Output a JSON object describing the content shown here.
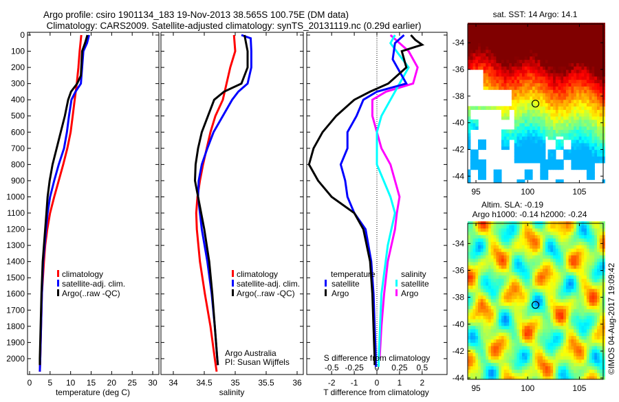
{
  "title": {
    "line1": "Argo profile: csiro 1901134_183 19-Nov-2013 38.565S 100.75E (DM data)",
    "line2": "Climatology: CARS2009. Satellite-adjusted climatology: synTS_20131119.nc (0.29d earlier)"
  },
  "colors": {
    "climatology": "#ff0000",
    "satellite": "#0000ff",
    "argo": "#000000",
    "sal_satellite": "#00ffff",
    "sal_argo": "#ff00ff"
  },
  "chart_data": [
    {
      "type": "line",
      "name": "temperature",
      "xlabel": "temperature (deg C)",
      "ylabel": "depth",
      "xlim": [
        -0.5,
        31.5
      ],
      "ylim": [
        2098,
        -17
      ],
      "xticks": [
        "0",
        "5",
        "10",
        "15",
        "20",
        "25",
        "30"
      ],
      "yticks": [
        "0",
        "100",
        "200",
        "300",
        "400",
        "500",
        "600",
        "700",
        "800",
        "900",
        "1000",
        "1100",
        "1200",
        "1300",
        "1400",
        "1500",
        "1600",
        "1700",
        "1800",
        "1900",
        "2000"
      ],
      "legend": [
        "climatology",
        "satellite-adj. clim.",
        "Argo(..raw -QC)"
      ],
      "series": [
        {
          "name": "climatology",
          "color": "#ff0000",
          "depth": [
            0,
            100,
            200,
            300,
            400,
            500,
            600,
            700,
            800,
            900,
            1000,
            1100,
            1200,
            1300,
            1400,
            1600,
            1800,
            2000,
            2080
          ],
          "values": [
            12.6,
            12.2,
            11.9,
            11.5,
            11.0,
            10.5,
            10.0,
            9.2,
            8.2,
            7.1,
            6.0,
            5.0,
            4.3,
            3.8,
            3.5,
            3.0,
            2.8,
            2.6,
            2.5
          ]
        },
        {
          "name": "satellite-adj. clim.",
          "color": "#0000ff",
          "depth": [
            0,
            50,
            100,
            200,
            300,
            350,
            400,
            500,
            600,
            700,
            800,
            900,
            1000,
            1100,
            1200,
            1400,
            1600,
            1800,
            2000,
            2080
          ],
          "values": [
            14.5,
            14.0,
            13.1,
            12.8,
            12.5,
            11.2,
            10.2,
            9.6,
            9.1,
            8.4,
            7.1,
            6.0,
            5.0,
            4.4,
            4.0,
            3.3,
            3.0,
            2.8,
            2.6,
            2.5
          ]
        },
        {
          "name": "Argo(..raw -QC)",
          "color": "#000000",
          "depth": [
            0,
            50,
            100,
            250,
            300,
            350,
            400,
            500,
            600,
            700,
            800,
            900,
            1000,
            1100,
            1200,
            1400,
            1600,
            1800,
            2000,
            2040
          ],
          "values": [
            14.1,
            13.5,
            12.8,
            12.5,
            11.6,
            10.1,
            9.4,
            8.6,
            7.6,
            6.6,
            5.6,
            4.9,
            4.4,
            4.1,
            3.8,
            3.2,
            2.9,
            2.7,
            2.5,
            2.5
          ]
        }
      ]
    },
    {
      "type": "line",
      "name": "salinity",
      "xlabel": "salinity",
      "xlim": [
        33.8,
        36.1
      ],
      "ylim": [
        2098,
        -17
      ],
      "xticks": [
        "34",
        "34.5",
        "35",
        "35.5",
        "36"
      ],
      "legend": [
        "climatology",
        "satellite-adj. clim.",
        "Argo(..raw -QC)"
      ],
      "annotation": [
        "Argo Australia",
        "PI: Susan Wijffels"
      ],
      "series": [
        {
          "name": "climatology",
          "color": "#ff0000",
          "depth": [
            0,
            100,
            200,
            300,
            400,
            500,
            600,
            700,
            800,
            900,
            1000,
            1100,
            1200,
            1400,
            1600,
            1800,
            2000,
            2080
          ],
          "values": [
            34.98,
            35.0,
            34.92,
            34.86,
            34.8,
            34.68,
            34.6,
            34.54,
            34.48,
            34.43,
            34.39,
            34.37,
            34.38,
            34.43,
            34.51,
            34.6,
            34.67,
            34.7
          ]
        },
        {
          "name": "satellite-adj. clim.",
          "color": "#0000ff",
          "depth": [
            0,
            20,
            100,
            200,
            300,
            350,
            400,
            500,
            600,
            700,
            800,
            900,
            1000,
            1200,
            1400,
            1600,
            1800,
            2000,
            2040
          ],
          "values": [
            35.1,
            35.25,
            35.26,
            35.26,
            35.2,
            35.05,
            34.95,
            34.8,
            34.65,
            34.55,
            34.46,
            34.41,
            34.4,
            34.46,
            34.55,
            34.62,
            34.67,
            34.71,
            34.72
          ]
        },
        {
          "name": "Argo(..raw -QC)",
          "color": "#000000",
          "depth": [
            0,
            100,
            200,
            300,
            350,
            400,
            500,
            600,
            700,
            800,
            900,
            1000,
            1200,
            1400,
            1600,
            1800,
            2000,
            2040
          ],
          "values": [
            35.15,
            35.2,
            35.2,
            35.1,
            34.82,
            34.66,
            34.56,
            34.46,
            34.4,
            34.36,
            34.35,
            34.4,
            34.5,
            34.58,
            34.63,
            34.67,
            34.71,
            34.72
          ]
        }
      ]
    },
    {
      "type": "line",
      "name": "difference",
      "xlabel": "T difference from climatology",
      "xlabel2": "S difference from climatology",
      "xlim": [
        -3.1,
        3.1
      ],
      "s_scale_factor": 0.25,
      "ylim": [
        2098,
        -17
      ],
      "xticks": [
        "-2",
        "-1",
        "0",
        "1",
        "2"
      ],
      "xticks2": [
        "-0.5",
        "-0.25",
        "0",
        "0.25",
        "0.5"
      ],
      "legend_temperature": {
        "title": "temperature",
        "items": [
          "satellite",
          "Argo"
        ]
      },
      "legend_salinity": {
        "title": "salinity",
        "items": [
          "satellite",
          "Argo"
        ]
      },
      "series": [
        {
          "name": "T Argo",
          "color": "#000000",
          "var": "T",
          "depth": [
            0,
            30,
            60,
            100,
            200,
            300,
            350,
            400,
            500,
            600,
            700,
            800,
            900,
            1000,
            1100,
            1200,
            1400,
            1600,
            2000,
            2040
          ],
          "values": [
            1.5,
            1.7,
            2.0,
            1.1,
            1.3,
            0.5,
            -0.3,
            -1.0,
            -1.8,
            -2.4,
            -2.8,
            -3.0,
            -2.6,
            -2.0,
            -1.0,
            -0.6,
            -0.3,
            -0.2,
            -0.1,
            -0.1
          ]
        },
        {
          "name": "T satellite",
          "color": "#0000ff",
          "var": "T",
          "depth": [
            0,
            50,
            150,
            300,
            350,
            400,
            500,
            600,
            700,
            800,
            900,
            1000,
            1100,
            1200,
            1400,
            1600,
            2000,
            2050
          ],
          "values": [
            1.2,
            0.8,
            0.7,
            1.3,
            0.0,
            -0.6,
            -0.9,
            -1.3,
            -1.3,
            -1.6,
            -1.4,
            -1.3,
            -1.0,
            -0.5,
            -0.25,
            -0.15,
            -0.05,
            -0.05
          ]
        },
        {
          "name": "S Argo",
          "color": "#ff00ff",
          "var": "S",
          "depth": [
            0,
            100,
            200,
            300,
            350,
            400,
            500,
            600,
            700,
            800,
            900,
            1000,
            1100,
            1200,
            1400,
            1600,
            1800,
            2000
          ],
          "values": [
            0.15,
            0.35,
            0.45,
            0.4,
            0.1,
            -0.05,
            -0.05,
            0.0,
            0.05,
            0.15,
            0.2,
            0.25,
            0.22,
            0.2,
            0.12,
            0.08,
            0.05,
            0.03
          ]
        },
        {
          "name": "S satellite",
          "color": "#00ffff",
          "var": "S",
          "depth": [
            0,
            50,
            200,
            300,
            400,
            500,
            600,
            800,
            1000,
            1100,
            1300,
            1600,
            2000,
            2050
          ],
          "values": [
            0.2,
            0.15,
            0.35,
            0.25,
            0.15,
            0.05,
            0.0,
            0.0,
            0.15,
            0.2,
            0.12,
            0.05,
            0.02,
            0.02
          ]
        }
      ]
    },
    {
      "type": "heatmap",
      "name": "sst_map",
      "title": "sat. SST: 14 Argo: 14.1",
      "xlim": [
        94.2,
        107.3
      ],
      "ylim": [
        -44.5,
        -32.6
      ],
      "xticks": [
        "95",
        "100",
        "105"
      ],
      "yticks": [
        "-34",
        "-36",
        "-38",
        "-40",
        "-42",
        "-44"
      ],
      "marker": {
        "lon": 100.75,
        "lat": -38.565
      }
    },
    {
      "type": "heatmap",
      "name": "sla_map",
      "title_line1": "Altim. SLA: -0.19",
      "title_line2": "Argo h1000: -0.14 h2000: -0.24",
      "xlim": [
        94.2,
        107.3
      ],
      "ylim": [
        -44.1,
        -32.5
      ],
      "xticks": [
        "95",
        "100",
        "105"
      ],
      "yticks": [
        "-34",
        "-36",
        "-38",
        "-40",
        "-42",
        "-44"
      ],
      "marker": {
        "lon": 100.75,
        "lat": -38.565
      }
    }
  ],
  "credit": "©IMOS 04-Aug-2017 19:09:42"
}
